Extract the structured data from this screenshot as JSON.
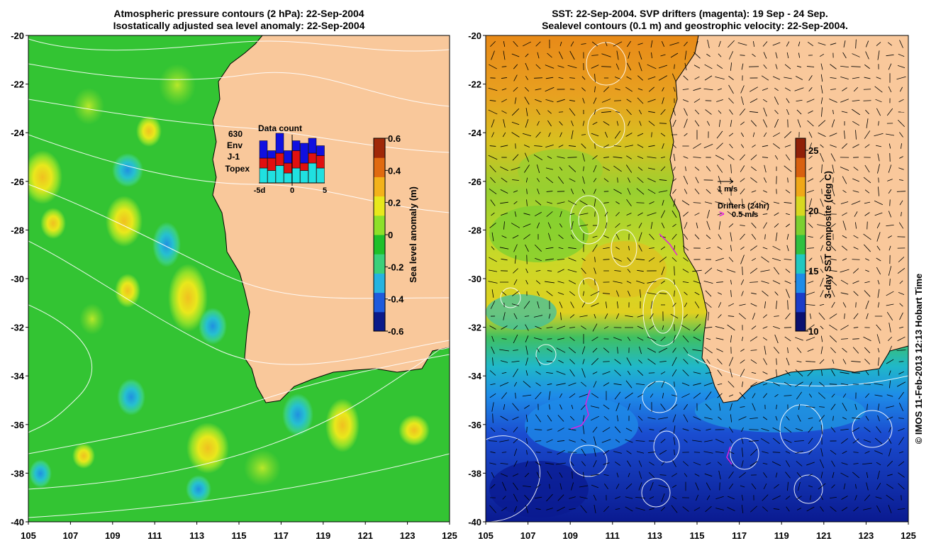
{
  "left_panel": {
    "title_line1": "Atmospheric pressure contours (2 hPa): 22-Sep-2004",
    "title_line2": "Isostatically adjusted sea level anomaly: 22-Sep-2004",
    "colorbar": {
      "label": "Sea level anomaly (m)",
      "ticks": [
        "0.6",
        "0.4",
        "0.2",
        "0",
        "-0.2",
        "-0.4",
        "-0.6"
      ],
      "range": [
        -0.6,
        0.6
      ],
      "colors": [
        "#0b1a8a",
        "#1e5adc",
        "#26b3e0",
        "#3bd07a",
        "#1fc02a",
        "#8ee02a",
        "#e8e81c",
        "#f3b21a",
        "#e06a10",
        "#a02808"
      ]
    },
    "inset": {
      "title": "Data count",
      "count": "630",
      "legend": [
        {
          "label": "Env",
          "color": "#1010e0"
        },
        {
          "label": "J-1",
          "color": "#e01010"
        },
        {
          "label": "Topex",
          "color": "#20e0e0"
        }
      ],
      "xticks": [
        "-5d",
        "0",
        "5"
      ],
      "bars": [
        {
          "topex": 0.3,
          "j1": 0.2,
          "env": 0.35
        },
        {
          "topex": 0.25,
          "j1": 0.25,
          "env": 0.15
        },
        {
          "topex": 0.35,
          "j1": 0.25,
          "env": 0.4
        },
        {
          "topex": 0.2,
          "j1": 0.2,
          "env": 0.25
        },
        {
          "topex": 0.3,
          "j1": 0.35,
          "env": 0.2
        },
        {
          "topex": 0.25,
          "j1": 0.15,
          "env": 0.4
        },
        {
          "topex": 0.4,
          "j1": 0.2,
          "env": 0.3
        },
        {
          "topex": 0.3,
          "j1": 0.25,
          "env": 0.2
        }
      ]
    }
  },
  "right_panel": {
    "title_line1": "SST: 22-Sep-2004. SVP drifters (magenta): 19 Sep - 24 Sep.",
    "title_line2": "Sealevel contours (0.1 m) and geostrophic velocity: 22-Sep-2004.",
    "colorbar": {
      "label": "3-day SST composite (deg C)",
      "ticks": [
        "25",
        "20",
        "15",
        "10"
      ],
      "range": [
        10,
        26
      ],
      "colors": [
        "#0a1070",
        "#1a3cc8",
        "#1e8ce8",
        "#20c8c0",
        "#30c040",
        "#7cd030",
        "#d8d820",
        "#f0a818",
        "#d86010",
        "#902008"
      ]
    },
    "velocity_key": "1 m/s",
    "drifters_label": "Drifters (24hr)",
    "drifters_speed": "0.5 m/s",
    "drifter_color": "#e020e0"
  },
  "axes": {
    "lat_ticks": [
      "-20",
      "-22",
      "-24",
      "-26",
      "-28",
      "-30",
      "-32",
      "-34",
      "-36",
      "-38",
      "-40"
    ],
    "lon_ticks": [
      "105",
      "107",
      "109",
      "111",
      "113",
      "115",
      "117",
      "119",
      "121",
      "123",
      "125"
    ],
    "lat_range": [
      -40,
      -20
    ],
    "lon_range": [
      105,
      125
    ]
  },
  "land_color": "#f9c89b",
  "credit": "© IMOS 11-Feb-2013 12:13 Hobart Time"
}
